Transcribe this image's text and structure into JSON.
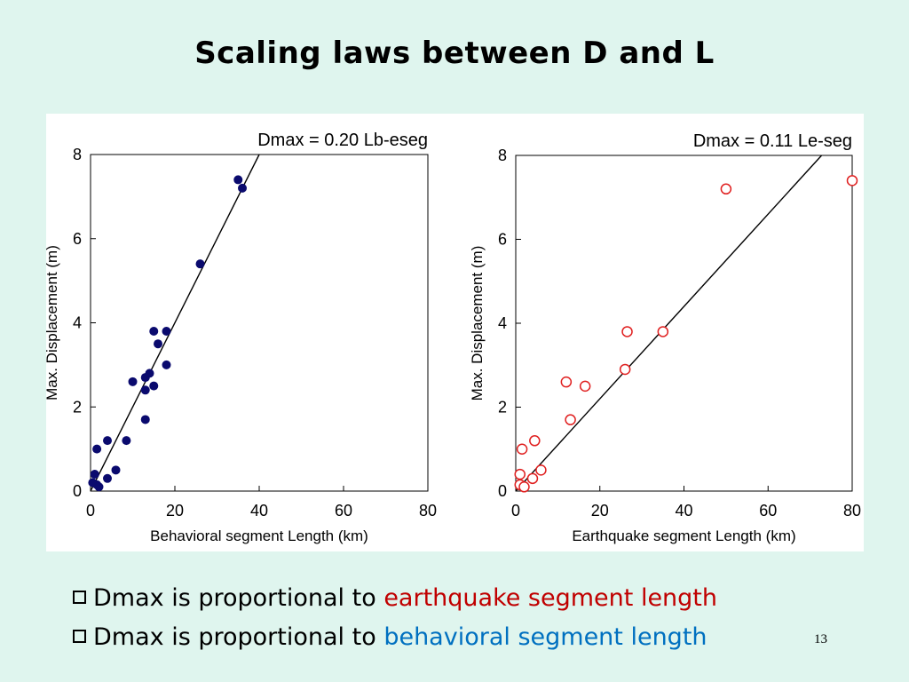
{
  "slide": {
    "title": "Scaling laws between D and L",
    "page_number": "13"
  },
  "bullets": [
    {
      "prefix": "Dmax is proportional to ",
      "highlight": "earthquake segment length",
      "color": "#c00000"
    },
    {
      "prefix": "Dmax is proportional to ",
      "highlight": "behavioral segment length",
      "color": "#0070c0"
    }
  ],
  "chart_data": [
    {
      "type": "scatter",
      "annotation": "Dmax = 0.20 Lb-eseg",
      "xlabel": "Behavioral segment Length  (km)",
      "ylabel": "Max. Displacement  (m)",
      "xlim": [
        0,
        80
      ],
      "ylim": [
        0,
        8
      ],
      "xticks": [
        "0",
        "20",
        "40",
        "60",
        "80"
      ],
      "yticks": [
        "0",
        "2",
        "4",
        "6",
        "8"
      ],
      "marker": "filled-circle",
      "color": "#0a0a6e",
      "fit_line": {
        "slope": 0.2,
        "intercept": 0
      },
      "points": [
        [
          0.5,
          0.2
        ],
        [
          1,
          0.4
        ],
        [
          1.5,
          0.15
        ],
        [
          2,
          0.1
        ],
        [
          1.5,
          1.0
        ],
        [
          4,
          1.2
        ],
        [
          4,
          0.3
        ],
        [
          6,
          0.5
        ],
        [
          8.5,
          1.2
        ],
        [
          10,
          2.6
        ],
        [
          13,
          1.7
        ],
        [
          13,
          2.4
        ],
        [
          13,
          2.7
        ],
        [
          14,
          2.8
        ],
        [
          15,
          2.5
        ],
        [
          15,
          3.8
        ],
        [
          16,
          3.5
        ],
        [
          18,
          3.8
        ],
        [
          18,
          3.0
        ],
        [
          26,
          5.4
        ],
        [
          35,
          7.4
        ],
        [
          36,
          7.2
        ]
      ]
    },
    {
      "type": "scatter",
      "annotation": "Dmax = 0.11 Le-seg",
      "xlabel": "Earthquake segment Length  (km)",
      "ylabel": "Max. Displacement  (m)",
      "xlim": [
        0,
        80
      ],
      "ylim": [
        0,
        8
      ],
      "xticks": [
        "0",
        "20",
        "40",
        "60",
        "80"
      ],
      "yticks": [
        "0",
        "2",
        "4",
        "6",
        "8"
      ],
      "marker": "open-circle",
      "color": "#e02020",
      "fit_line": {
        "slope": 0.11,
        "intercept": 0
      },
      "points": [
        [
          1,
          0.4
        ],
        [
          1,
          0.15
        ],
        [
          2,
          0.1
        ],
        [
          1.5,
          1.0
        ],
        [
          4.5,
          1.2
        ],
        [
          4,
          0.3
        ],
        [
          6,
          0.5
        ],
        [
          12,
          2.6
        ],
        [
          13,
          1.7
        ],
        [
          16.5,
          2.5
        ],
        [
          26,
          2.9
        ],
        [
          26.5,
          3.8
        ],
        [
          35,
          3.8
        ],
        [
          50,
          7.2
        ],
        [
          80,
          7.4
        ]
      ]
    }
  ]
}
